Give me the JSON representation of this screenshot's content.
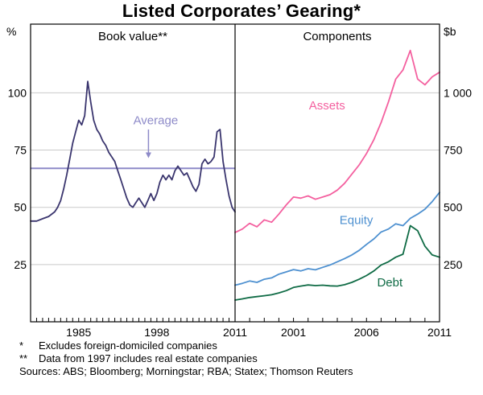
{
  "title": "Listed Corporates’ Gearing*",
  "colors": {
    "book_value": "#3a356e",
    "average": "#8d8ac8",
    "assets": "#f4609f",
    "equity": "#4d90d0",
    "debt": "#0f6b45",
    "grid": "#c9c9c9",
    "axis": "#000000"
  },
  "chart_data": [
    {
      "type": "line",
      "panel_title": "Book value**",
      "axis_side": "left",
      "unit": "%",
      "xlim": [
        1977,
        2011
      ],
      "ylim": [
        0,
        130
      ],
      "yticks": [
        25,
        50,
        75,
        100
      ],
      "ytick_labels": [
        "25",
        "50",
        "75",
        "100"
      ],
      "xticks": [
        1985,
        1998,
        2011
      ],
      "xtick_labels": [
        "1985",
        "1998",
        "2011"
      ],
      "minor_tick_step": 1,
      "series": [
        {
          "name": "Book value gearing ratio",
          "color_key": "book_value",
          "points": [
            [
              1977,
              44
            ],
            [
              1978,
              44
            ],
            [
              1979,
              45
            ],
            [
              1980,
              46
            ],
            [
              1981,
              48
            ],
            [
              1981.5,
              50
            ],
            [
              1982,
              53
            ],
            [
              1982.5,
              58
            ],
            [
              1983,
              64
            ],
            [
              1983.5,
              71
            ],
            [
              1984,
              78
            ],
            [
              1984.5,
              83
            ],
            [
              1985,
              88
            ],
            [
              1985.5,
              86
            ],
            [
              1986,
              90
            ],
            [
              1986.5,
              105
            ],
            [
              1987,
              96
            ],
            [
              1987.5,
              88
            ],
            [
              1988,
              84
            ],
            [
              1988.5,
              82
            ],
            [
              1989,
              79
            ],
            [
              1989.5,
              77
            ],
            [
              1990,
              74
            ],
            [
              1990.5,
              72
            ],
            [
              1991,
              70
            ],
            [
              1991.5,
              66
            ],
            [
              1992,
              62
            ],
            [
              1992.5,
              58
            ],
            [
              1993,
              54
            ],
            [
              1993.5,
              51
            ],
            [
              1994,
              50
            ],
            [
              1994.5,
              52
            ],
            [
              1995,
              54
            ],
            [
              1995.5,
              52
            ],
            [
              1996,
              50
            ],
            [
              1996.5,
              53
            ],
            [
              1997,
              56
            ],
            [
              1997.5,
              53
            ],
            [
              1998,
              56
            ],
            [
              1998.5,
              61
            ],
            [
              1999,
              64
            ],
            [
              1999.5,
              62
            ],
            [
              2000,
              64
            ],
            [
              2000.5,
              62
            ],
            [
              2001,
              66
            ],
            [
              2001.5,
              68
            ],
            [
              2002,
              66
            ],
            [
              2002.5,
              64
            ],
            [
              2003,
              65
            ],
            [
              2003.5,
              62
            ],
            [
              2004,
              59
            ],
            [
              2004.5,
              57
            ],
            [
              2005,
              60
            ],
            [
              2005.5,
              69
            ],
            [
              2006,
              71
            ],
            [
              2006.5,
              69
            ],
            [
              2007,
              70
            ],
            [
              2007.5,
              72
            ],
            [
              2008,
              83
            ],
            [
              2008.5,
              84
            ],
            [
              2009,
              70
            ],
            [
              2009.5,
              62
            ],
            [
              2010,
              55
            ],
            [
              2010.5,
              50
            ],
            [
              2011,
              48
            ]
          ]
        }
      ],
      "reference_line": {
        "name": "Average",
        "value": 67,
        "color_key": "average"
      },
      "annotations": [
        {
          "text": "Average",
          "x": 1997.8,
          "y": 88,
          "color_key": "average",
          "arrow": {
            "x": 1996.6,
            "y_from": 84,
            "y_to": 71.5
          }
        }
      ]
    },
    {
      "type": "line",
      "panel_title": "Components",
      "axis_side": "right",
      "unit": "$b",
      "xlim": [
        1997,
        2011
      ],
      "ylim": [
        0,
        1300
      ],
      "yticks": [
        250,
        500,
        750,
        1000
      ],
      "ytick_labels": [
        "250",
        "500",
        "750",
        "1 000"
      ],
      "xticks": [
        2001,
        2006,
        2011
      ],
      "xtick_labels": [
        "2001",
        "2006",
        "2011"
      ],
      "minor_tick_step": 1,
      "series": [
        {
          "name": "Assets",
          "color_key": "assets",
          "label": {
            "text": "Assets",
            "x": 2003.3,
            "y": 945
          },
          "points": [
            [
              1997,
              390
            ],
            [
              1997.5,
              405
            ],
            [
              1998,
              430
            ],
            [
              1998.5,
              415
            ],
            [
              1999,
              445
            ],
            [
              1999.5,
              435
            ],
            [
              2000,
              470
            ],
            [
              2000.5,
              510
            ],
            [
              2001,
              545
            ],
            [
              2001.5,
              540
            ],
            [
              2002,
              550
            ],
            [
              2002.5,
              535
            ],
            [
              2003,
              545
            ],
            [
              2003.5,
              555
            ],
            [
              2004,
              575
            ],
            [
              2004.5,
              605
            ],
            [
              2005,
              645
            ],
            [
              2005.5,
              685
            ],
            [
              2006,
              735
            ],
            [
              2006.5,
              795
            ],
            [
              2007,
              870
            ],
            [
              2007.5,
              960
            ],
            [
              2008,
              1060
            ],
            [
              2008.5,
              1100
            ],
            [
              2009,
              1185
            ],
            [
              2009.5,
              1060
            ],
            [
              2010,
              1035
            ],
            [
              2010.5,
              1070
            ],
            [
              2011,
              1090
            ]
          ]
        },
        {
          "name": "Equity",
          "color_key": "equity",
          "label": {
            "text": "Equity",
            "x": 2005.3,
            "y": 445
          },
          "points": [
            [
              1997,
              160
            ],
            [
              1997.5,
              168
            ],
            [
              1998,
              178
            ],
            [
              1998.5,
              172
            ],
            [
              1999,
              186
            ],
            [
              1999.5,
              192
            ],
            [
              2000,
              208
            ],
            [
              2000.5,
              218
            ],
            [
              2001,
              228
            ],
            [
              2001.5,
              222
            ],
            [
              2002,
              232
            ],
            [
              2002.5,
              227
            ],
            [
              2003,
              238
            ],
            [
              2003.5,
              248
            ],
            [
              2004,
              262
            ],
            [
              2004.5,
              276
            ],
            [
              2005,
              292
            ],
            [
              2005.5,
              312
            ],
            [
              2006,
              338
            ],
            [
              2006.5,
              362
            ],
            [
              2007,
              392
            ],
            [
              2007.5,
              405
            ],
            [
              2008,
              428
            ],
            [
              2008.5,
              420
            ],
            [
              2009,
              452
            ],
            [
              2009.5,
              470
            ],
            [
              2010,
              492
            ],
            [
              2010.5,
              525
            ],
            [
              2011,
              565
            ]
          ]
        },
        {
          "name": "Debt",
          "color_key": "debt",
          "label": {
            "text": "Debt",
            "x": 2007.6,
            "y": 172
          },
          "points": [
            [
              1997,
              95
            ],
            [
              1997.5,
              100
            ],
            [
              1998,
              106
            ],
            [
              1998.5,
              110
            ],
            [
              1999,
              114
            ],
            [
              1999.5,
              118
            ],
            [
              2000,
              126
            ],
            [
              2000.5,
              136
            ],
            [
              2001,
              150
            ],
            [
              2001.5,
              156
            ],
            [
              2002,
              161
            ],
            [
              2002.5,
              158
            ],
            [
              2003,
              160
            ],
            [
              2003.5,
              157
            ],
            [
              2004,
              156
            ],
            [
              2004.5,
              162
            ],
            [
              2005,
              172
            ],
            [
              2005.5,
              186
            ],
            [
              2006,
              202
            ],
            [
              2006.5,
              222
            ],
            [
              2007,
              248
            ],
            [
              2007.5,
              262
            ],
            [
              2008,
              282
            ],
            [
              2008.5,
              295
            ],
            [
              2009,
              420
            ],
            [
              2009.5,
              398
            ],
            [
              2010,
              330
            ],
            [
              2010.5,
              292
            ],
            [
              2011,
              282
            ]
          ]
        }
      ]
    }
  ],
  "footnotes": {
    "items": [
      {
        "marker": "*",
        "text": "Excludes foreign-domiciled companies"
      },
      {
        "marker": "**",
        "text": "Data from 1997 includes real estate companies"
      }
    ],
    "sources": "Sources: ABS; Bloomberg; Morningstar; RBA; Statex; Thomson Reuters"
  }
}
